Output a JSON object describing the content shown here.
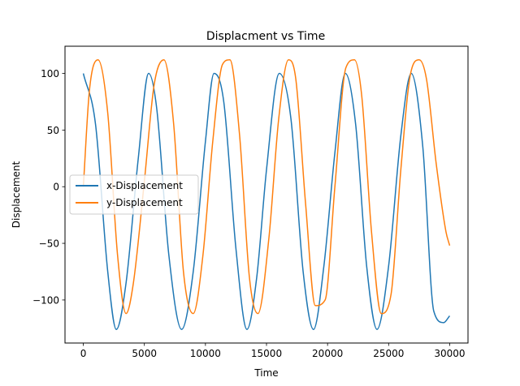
{
  "chart_data": {
    "type": "line",
    "title": "Displacment vs Time",
    "xlabel": "Time",
    "ylabel": "Displacement",
    "xlim": [
      -1500,
      31500
    ],
    "ylim": [
      -138,
      124
    ],
    "xticks": [
      0,
      5000,
      10000,
      15000,
      20000,
      25000,
      30000
    ],
    "xtick_labels": [
      "0",
      "5000",
      "10000",
      "15000",
      "20000",
      "25000",
      "30000"
    ],
    "yticks": [
      -100,
      -50,
      0,
      50,
      100
    ],
    "ytick_labels": [
      "−100",
      "−50",
      "0",
      "50",
      "100"
    ],
    "grid": false,
    "legend_position": "center-left",
    "series": [
      {
        "name": "x-Displacement",
        "color": "#1f77b4",
        "x": [
          0,
          1000,
          2000,
          2700,
          3500,
          4500,
          5350,
          6000,
          7000,
          8050,
          9000,
          10000,
          10700,
          11500,
          12500,
          13400,
          14200,
          15000,
          16050,
          17000,
          18000,
          18850,
          19700,
          20600,
          21450,
          22300,
          23200,
          24050,
          25000,
          26000,
          26850,
          27800,
          28700,
          29500,
          30000
        ],
        "y": [
          100,
          55,
          -75,
          -126,
          -85,
          25,
          100,
          70,
          -60,
          -126,
          -75,
          40,
          100,
          75,
          -55,
          -126,
          -80,
          15,
          100,
          60,
          -75,
          -126,
          -70,
          30,
          100,
          55,
          -70,
          -126,
          -70,
          45,
          100,
          35,
          -110,
          -120,
          -114
        ]
      },
      {
        "name": "y-Displacement",
        "color": "#ff7f0e",
        "x": [
          0,
          500,
          1200,
          2000,
          2800,
          3500,
          4100,
          5000,
          5800,
          6600,
          7400,
          8200,
          9000,
          9800,
          10600,
          11400,
          12000,
          12800,
          13600,
          14300,
          15200,
          16000,
          16800,
          17400,
          18200,
          19000,
          19800,
          20600,
          21500,
          22200,
          22800,
          23600,
          24400,
          25200,
          26000,
          26800,
          27500,
          28100,
          28900,
          29700,
          30000
        ],
        "y": [
          0,
          85,
          112,
          65,
          -60,
          -112,
          -85,
          5,
          90,
          112,
          55,
          -75,
          -112,
          -60,
          40,
          108,
          112,
          45,
          -80,
          -112,
          -45,
          60,
          112,
          95,
          -15,
          -105,
          -100,
          0,
          105,
          112,
          80,
          -40,
          -112,
          -95,
          15,
          100,
          112,
          95,
          20,
          -40,
          -52
        ]
      }
    ]
  }
}
